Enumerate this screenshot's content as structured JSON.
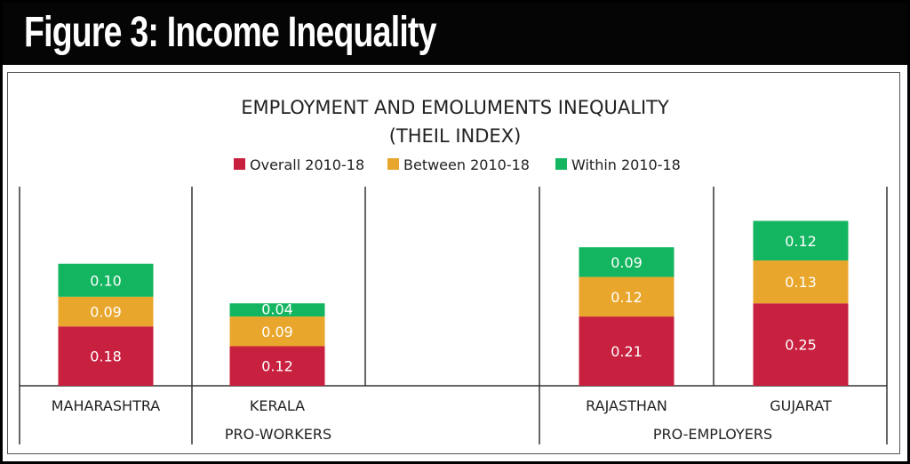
{
  "header": {
    "title": "Figure 3: Income Inequality"
  },
  "chart_data": {
    "type": "bar",
    "stacked": true,
    "title": "EMPLOYMENT AND EMOLUMENTS INEQUALITY",
    "subtitle": "(THEIL INDEX)",
    "categories": [
      "MAHARASHTRA",
      "KERALA",
      "",
      "RAJASTHAN",
      "GUJARAT"
    ],
    "groups": [
      {
        "label": "PRO-WORKERS",
        "categories": [
          "MAHARASHTRA",
          "KERALA",
          ""
        ]
      },
      {
        "label": "PRO-EMPLOYERS",
        "categories": [
          "RAJASTHAN",
          "GUJARAT"
        ]
      }
    ],
    "series": [
      {
        "name": "Overall 2010-18",
        "color": "#c8203f",
        "values": [
          0.18,
          0.12,
          null,
          0.21,
          0.25
        ]
      },
      {
        "name": "Between 2010-18",
        "color": "#e9a62c",
        "values": [
          0.09,
          0.09,
          null,
          0.12,
          0.13
        ]
      },
      {
        "name": "Within 2010-18",
        "color": "#14b560",
        "values": [
          0.1,
          0.04,
          null,
          0.09,
          0.12
        ]
      }
    ],
    "value_labels": [
      [
        "0.18",
        "0.12",
        "",
        "0.21",
        "0.25"
      ],
      [
        "0.09",
        "0.09",
        "",
        "0.12",
        "0.13"
      ],
      [
        "0.10",
        "0.04",
        "",
        "0.09",
        "0.12"
      ]
    ],
    "legend_position": "top",
    "grid": false
  }
}
